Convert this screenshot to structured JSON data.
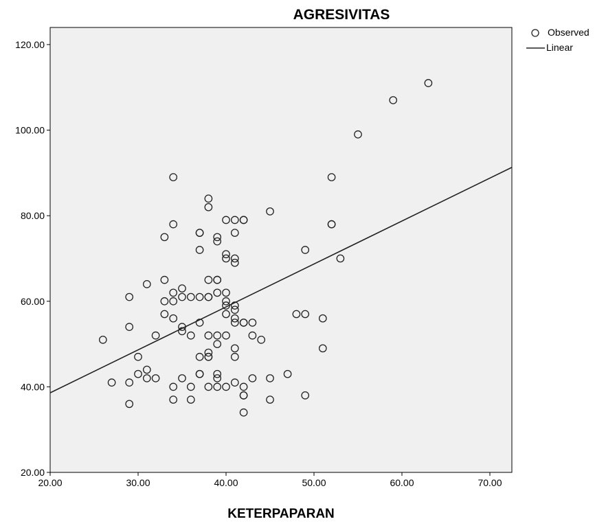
{
  "chart_data": {
    "type": "scatter",
    "title": "AGRESIVITAS",
    "xlabel": "KETERPAPARAN",
    "ylabel": "",
    "xlim": [
      20,
      72.5
    ],
    "ylim": [
      20,
      124
    ],
    "x_ticks": [
      20,
      30,
      40,
      50,
      60,
      70
    ],
    "x_tick_labels": [
      "20.00",
      "30.00",
      "40.00",
      "50.00",
      "60.00",
      "70.00"
    ],
    "y_ticks": [
      20,
      40,
      60,
      80,
      100,
      120
    ],
    "y_tick_labels": [
      "20.00",
      "40.00",
      "60.00",
      "80.00",
      "100.00",
      "120.00"
    ],
    "grid": false,
    "legend_placement": "top-right, outside plot",
    "legend": [
      {
        "label": "Observed",
        "marker": "circle"
      },
      {
        "label": "Linear",
        "marker": "line"
      }
    ],
    "colors": {
      "plot_background": "#f0f0f0",
      "marker_stroke": "#222222",
      "line": "#222222",
      "axis": "#000000"
    },
    "series": [
      {
        "name": "Observed",
        "kind": "points",
        "points": [
          [
            26,
            51
          ],
          [
            27,
            41
          ],
          [
            29,
            61
          ],
          [
            29,
            54
          ],
          [
            29,
            41
          ],
          [
            29,
            36
          ],
          [
            30,
            47
          ],
          [
            30,
            43
          ],
          [
            31,
            64
          ],
          [
            31,
            44
          ],
          [
            31,
            42
          ],
          [
            32,
            52
          ],
          [
            32,
            42
          ],
          [
            33,
            75
          ],
          [
            33,
            65
          ],
          [
            33,
            60
          ],
          [
            33,
            57
          ],
          [
            34,
            89
          ],
          [
            34,
            78
          ],
          [
            34,
            62
          ],
          [
            34,
            60
          ],
          [
            34,
            56
          ],
          [
            34,
            40
          ],
          [
            34,
            37
          ],
          [
            35,
            63
          ],
          [
            35,
            61
          ],
          [
            35,
            54
          ],
          [
            35,
            53
          ],
          [
            35,
            42
          ],
          [
            36,
            61
          ],
          [
            36,
            52
          ],
          [
            36,
            40
          ],
          [
            36,
            37
          ],
          [
            37,
            76
          ],
          [
            37,
            76
          ],
          [
            37,
            72
          ],
          [
            37,
            61
          ],
          [
            37,
            55
          ],
          [
            37,
            47
          ],
          [
            37,
            43
          ],
          [
            37,
            43
          ],
          [
            38,
            84
          ],
          [
            38,
            82
          ],
          [
            38,
            65
          ],
          [
            38,
            61
          ],
          [
            38,
            61
          ],
          [
            38,
            52
          ],
          [
            38,
            48
          ],
          [
            38,
            47
          ],
          [
            38,
            47
          ],
          [
            38,
            40
          ],
          [
            39,
            75
          ],
          [
            39,
            74
          ],
          [
            39,
            65
          ],
          [
            39,
            65
          ],
          [
            39,
            62
          ],
          [
            39,
            52
          ],
          [
            39,
            50
          ],
          [
            39,
            43
          ],
          [
            39,
            42
          ],
          [
            39,
            40
          ],
          [
            40,
            79
          ],
          [
            40,
            71
          ],
          [
            40,
            70
          ],
          [
            40,
            62
          ],
          [
            40,
            60
          ],
          [
            40,
            59
          ],
          [
            40,
            57
          ],
          [
            40,
            52
          ],
          [
            40,
            40
          ],
          [
            41,
            79
          ],
          [
            41,
            76
          ],
          [
            41,
            70
          ],
          [
            41,
            69
          ],
          [
            41,
            59
          ],
          [
            41,
            58
          ],
          [
            41,
            56
          ],
          [
            41,
            55
          ],
          [
            41,
            49
          ],
          [
            41,
            47
          ],
          [
            41,
            41
          ],
          [
            42,
            79
          ],
          [
            42,
            79
          ],
          [
            42,
            55
          ],
          [
            42,
            55
          ],
          [
            42,
            40
          ],
          [
            42,
            38
          ],
          [
            42,
            38
          ],
          [
            42,
            34
          ],
          [
            43,
            55
          ],
          [
            43,
            52
          ],
          [
            43,
            42
          ],
          [
            44,
            51
          ],
          [
            45,
            81
          ],
          [
            45,
            42
          ],
          [
            45,
            37
          ],
          [
            47,
            43
          ],
          [
            48,
            57
          ],
          [
            49,
            72
          ],
          [
            49,
            57
          ],
          [
            49,
            38
          ],
          [
            51,
            56
          ],
          [
            51,
            49
          ],
          [
            52,
            89
          ],
          [
            52,
            78
          ],
          [
            52,
            78
          ],
          [
            53,
            70
          ],
          [
            55,
            99
          ],
          [
            59,
            107
          ],
          [
            63,
            111
          ]
        ]
      },
      {
        "name": "Linear",
        "kind": "line",
        "points": [
          [
            20,
            38.6
          ],
          [
            72.5,
            91.3
          ]
        ]
      }
    ]
  }
}
